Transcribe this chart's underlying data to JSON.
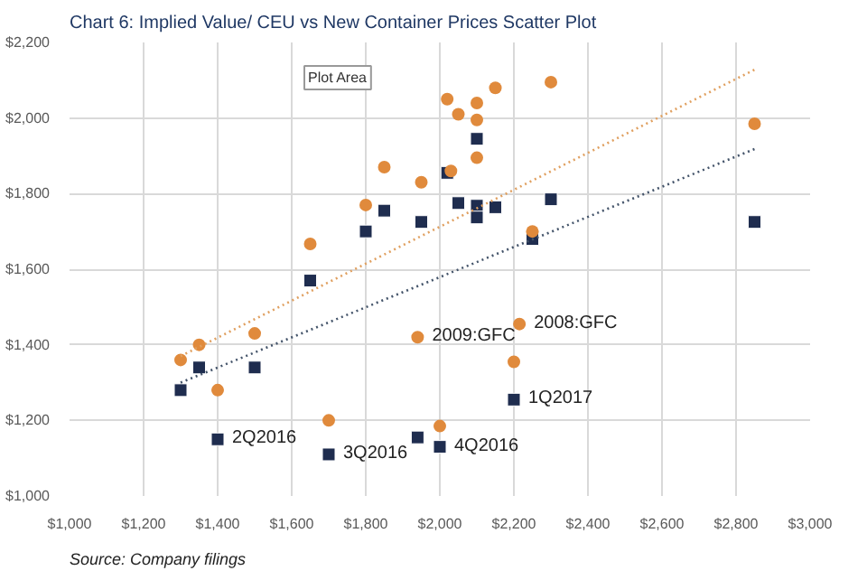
{
  "chart_data": {
    "type": "scatter",
    "title": "Chart 6: Implied Value/ CEU vs New Container Prices Scatter Plot",
    "xlim": [
      1000,
      3000
    ],
    "xticks": [
      {
        "value": 1000,
        "label": "$1,000"
      },
      {
        "value": 1200,
        "label": "$1,200"
      },
      {
        "value": 1400,
        "label": "$1,400"
      },
      {
        "value": 1600,
        "label": "$1,600"
      },
      {
        "value": 1800,
        "label": "$1,800"
      },
      {
        "value": 2000,
        "label": "$2,000"
      },
      {
        "value": 2200,
        "label": "$2,200"
      },
      {
        "value": 2400,
        "label": "$2,400"
      },
      {
        "value": 2600,
        "label": "$2,600"
      },
      {
        "value": 2800,
        "label": "$2,800"
      },
      {
        "value": 3000,
        "label": "$3,000"
      }
    ],
    "ylim": [
      1000,
      2200
    ],
    "yticks": [
      {
        "value": 1000,
        "label": "$1,000"
      },
      {
        "value": 1200,
        "label": "$1,200"
      },
      {
        "value": 1400,
        "label": "$1,400"
      },
      {
        "value": 1600,
        "label": "$1,600"
      },
      {
        "value": 1800,
        "label": "$1,800"
      },
      {
        "value": 2000,
        "label": "$2,000"
      },
      {
        "value": 2200,
        "label": "$2,200"
      }
    ],
    "grid": true,
    "series": [
      {
        "color": "#1f2d4f",
        "marker": "square",
        "x": [
          1300,
          1350,
          1500,
          1400,
          1650,
          1700,
          1800,
          1850,
          1950,
          1940,
          2000,
          2020,
          2050,
          2100,
          2100,
          2100,
          2150,
          2300,
          2250,
          2850,
          2200
        ],
        "values": [
          1280,
          1340,
          1340,
          1150,
          1570,
          1110,
          1700,
          1755,
          1725,
          1155,
          1130,
          1855,
          1775,
          1945,
          1768,
          1737,
          1764,
          1785,
          1680,
          1725,
          1255
        ]
      },
      {
        "color": "#e08a3c",
        "marker": "circle",
        "x": [
          1300,
          1350,
          1500,
          1400,
          1650,
          1700,
          1800,
          1850,
          1950,
          1940,
          2000,
          2020,
          2030,
          2050,
          2100,
          2100,
          2100,
          2150,
          2300,
          2250,
          2215,
          2200,
          2850
        ],
        "values": [
          1360,
          1400,
          1430,
          1280,
          1667,
          1200,
          1770,
          1870,
          1830,
          1420,
          1185,
          2050,
          1860,
          2010,
          2040,
          1995,
          1895,
          2080,
          2095,
          1700,
          1455,
          1355,
          1985
        ]
      },
      {
        "type": "line",
        "color": "#44546a",
        "line_style": "dotted",
        "x": [
          1300,
          2850
        ],
        "values": [
          1300,
          1918
        ]
      },
      {
        "type": "line",
        "color": "#e0a060",
        "line_style": "dotted",
        "x": [
          1300,
          2850
        ],
        "values": [
          1370,
          2128
        ]
      }
    ],
    "annotations": [
      {
        "text": "2Q2016",
        "x": 1400,
        "y": 1150
      },
      {
        "text": "3Q2016",
        "x": 1700,
        "y": 1110
      },
      {
        "text": "2009:GFC",
        "x": 1940,
        "y": 1420
      },
      {
        "text": "4Q2016",
        "x": 2000,
        "y": 1130
      },
      {
        "text": "2008:GFC",
        "x": 2215,
        "y": 1455
      },
      {
        "text": "1Q2017",
        "x": 2200,
        "y": 1255
      },
      "Plot Area",
      "Source: Company filings"
    ]
  }
}
